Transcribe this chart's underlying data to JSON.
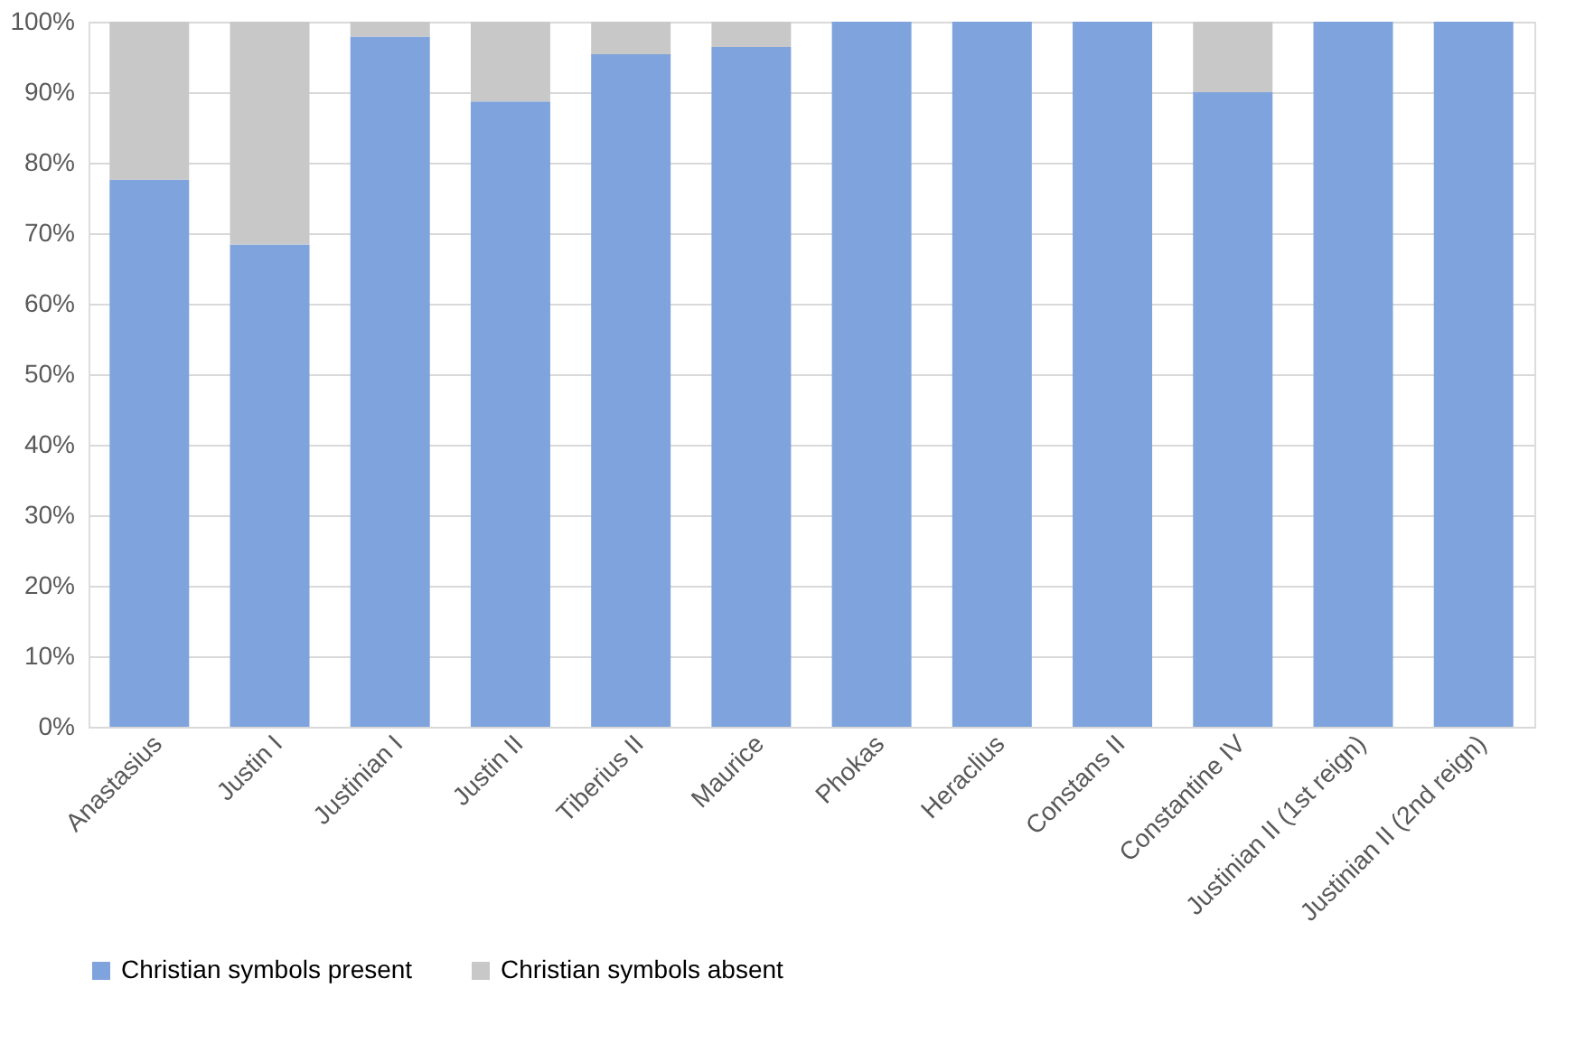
{
  "chart_data": {
    "type": "bar",
    "stacked": true,
    "categories": [
      "Anastasius",
      "Justin I",
      "Justinian I",
      "Justin II",
      "Tiberius II",
      "Maurice",
      "Phokas",
      "Heraclius",
      "Constans II",
      "Constantine IV",
      "Justinian II (1st reign)",
      "Justinian II (2nd reign)"
    ],
    "series": [
      {
        "name": "Christian symbols present",
        "color": "#7fa3dc",
        "values": [
          77.6,
          68.4,
          97.9,
          88.7,
          95.4,
          96.4,
          100,
          100,
          100,
          90.0,
          100,
          100
        ]
      },
      {
        "name": "Christian symbols absent",
        "color": "#c8c8c8",
        "values": [
          22.4,
          31.6,
          2.1,
          11.3,
          4.6,
          3.6,
          0,
          0,
          0,
          10.0,
          0,
          0
        ]
      }
    ],
    "ylim": [
      0,
      100
    ],
    "yticks": [
      {
        "value": 0,
        "label": "0%"
      },
      {
        "value": 10,
        "label": "10%"
      },
      {
        "value": 20,
        "label": "20%"
      },
      {
        "value": 30,
        "label": "30%"
      },
      {
        "value": 40,
        "label": "40%"
      },
      {
        "value": 50,
        "label": "50%"
      },
      {
        "value": 60,
        "label": "60%"
      },
      {
        "value": 70,
        "label": "70%"
      },
      {
        "value": 80,
        "label": "80%"
      },
      {
        "value": 90,
        "label": "90%"
      },
      {
        "value": 100,
        "label": "100%"
      }
    ],
    "grid": "y",
    "legend": "bottom"
  }
}
